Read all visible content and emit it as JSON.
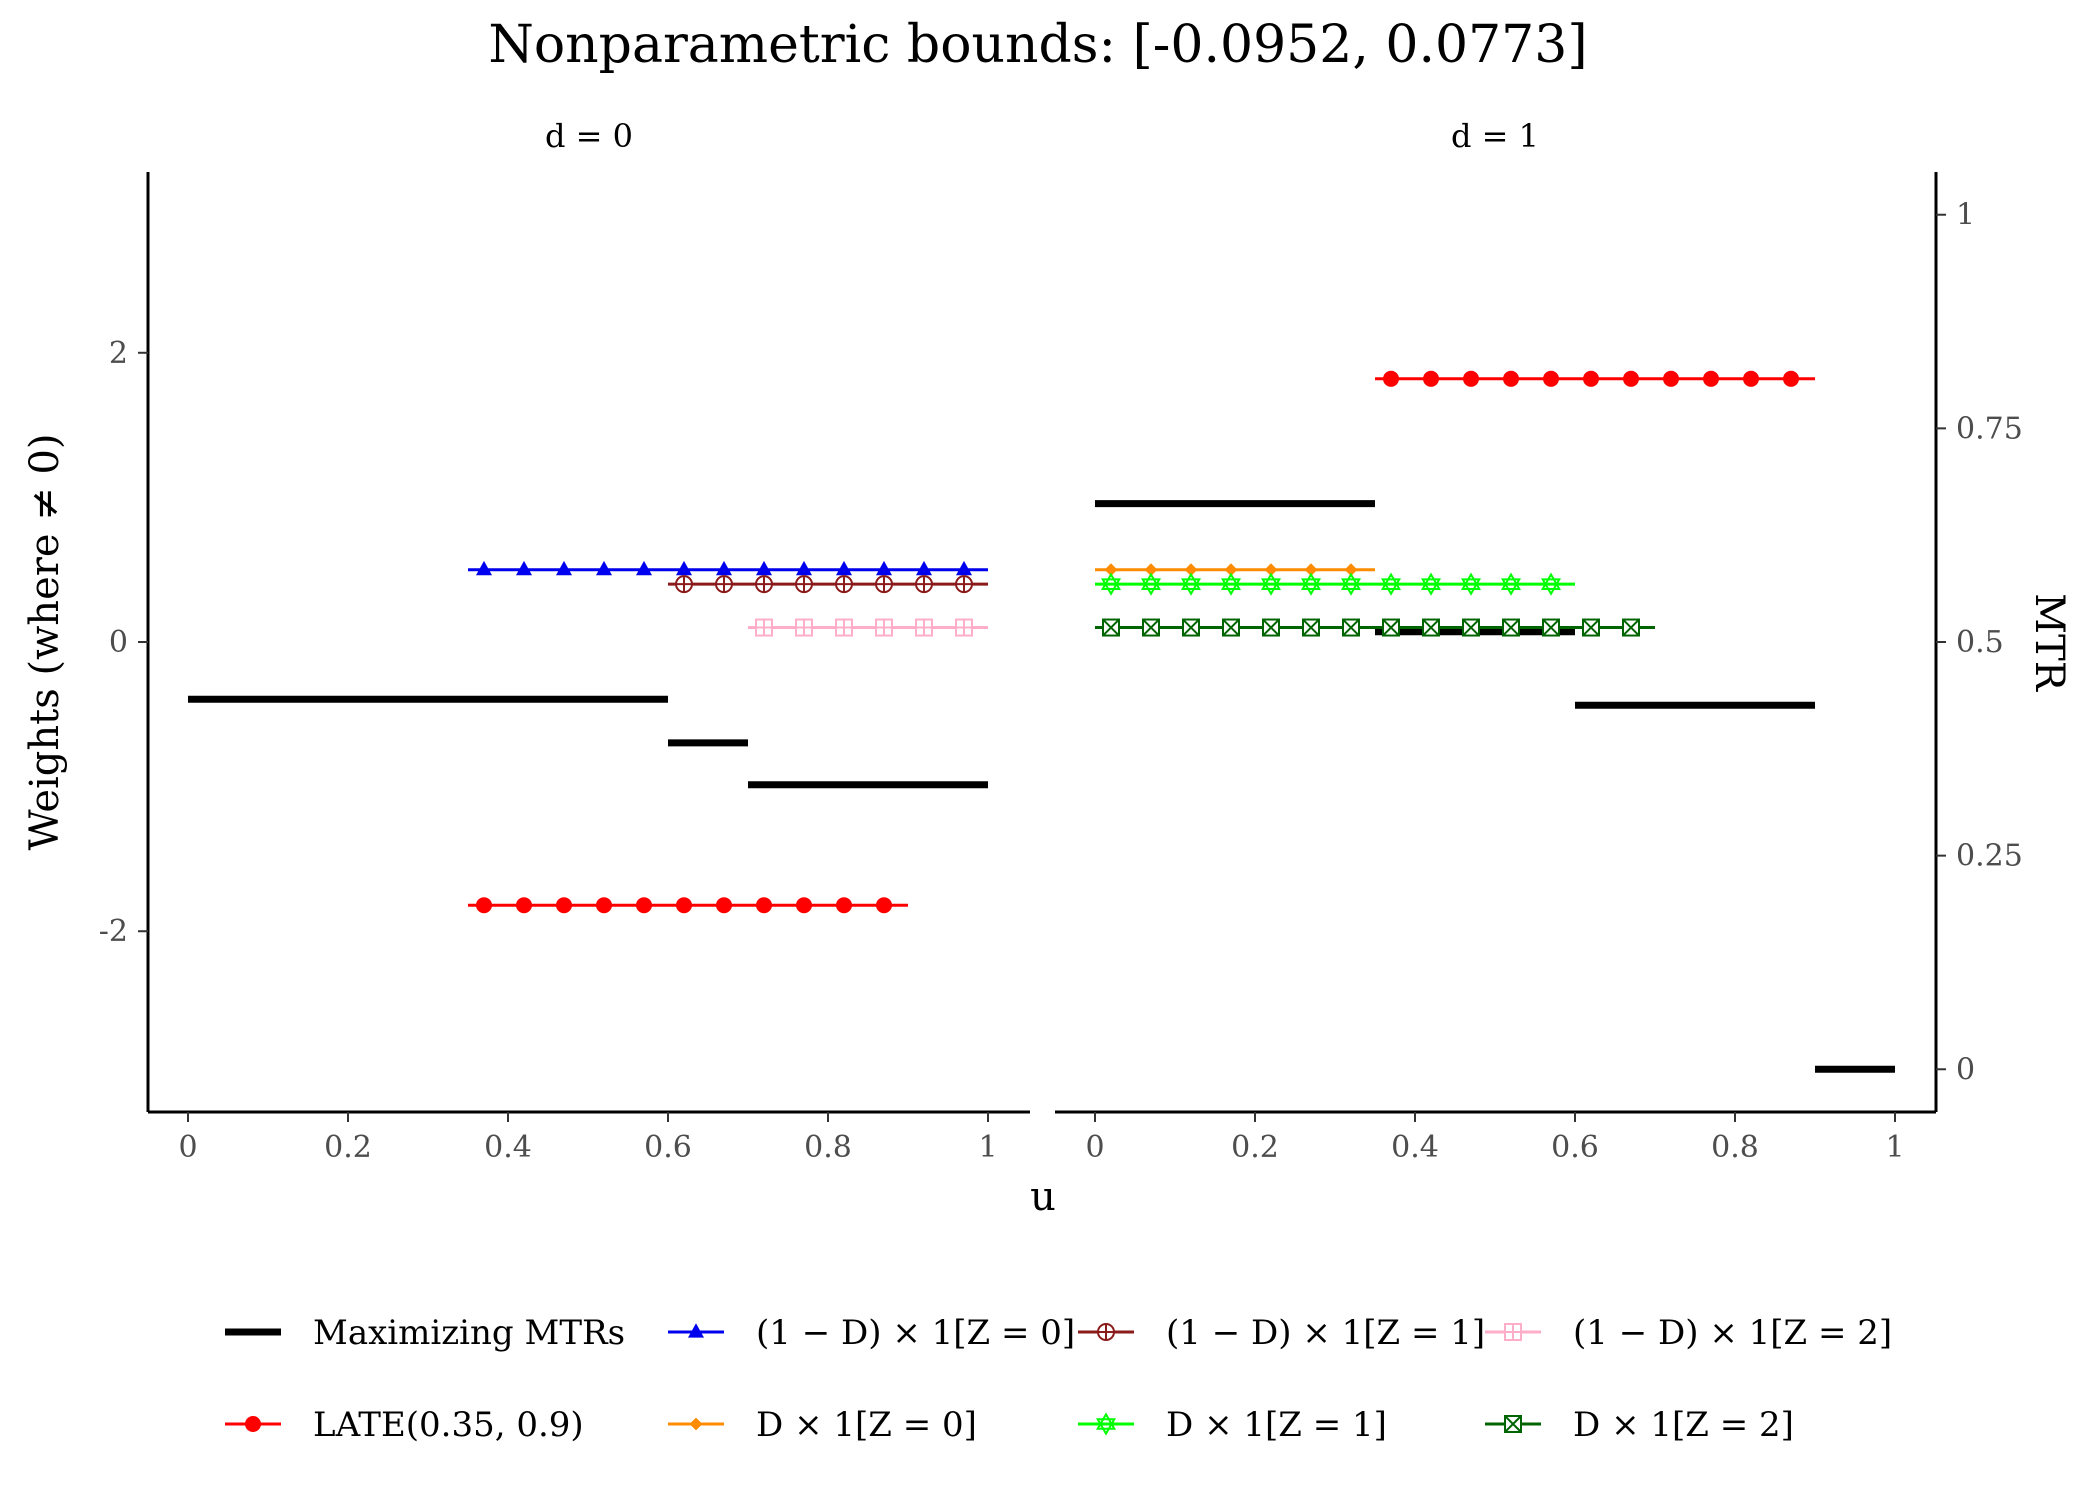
{
  "chart_data": {
    "type": "line",
    "title": "Nonparametric bounds: [-0.0952, 0.0773]",
    "xlabel": "u",
    "ylabel_left": "Weights (where ≠ 0)",
    "ylabel_right": "MTR",
    "panels": [
      {
        "label": "d = 0",
        "xlim": [
          0,
          1
        ]
      },
      {
        "label": "d = 1",
        "xlim": [
          0,
          1
        ]
      }
    ],
    "x_ticks": [
      "0",
      "0.2",
      "0.4",
      "0.6",
      "0.8",
      "1"
    ],
    "y_left": {
      "lim": [
        -3.25,
        3.25
      ],
      "ticks": [
        -2,
        0,
        2
      ],
      "tick_labels": [
        "-2",
        "0",
        "2"
      ]
    },
    "y_right": {
      "lim": [
        -0.05,
        1.05
      ],
      "ticks": [
        0,
        0.25,
        0.5,
        0.75,
        1
      ],
      "tick_labels": [
        "0",
        "0.25",
        "0.5",
        "0.75",
        "1"
      ]
    },
    "series": [
      {
        "name": "Maximizing MTRs",
        "color": "#000000",
        "marker": "none",
        "axis": "right",
        "segments": [
          {
            "panel": 0,
            "x": [
              0,
              0.35
            ],
            "y": 0.433
          },
          {
            "panel": 0,
            "x": [
              0.35,
              0.6
            ],
            "y": 0.433
          },
          {
            "panel": 0,
            "x": [
              0.6,
              0.7
            ],
            "y": 0.382
          },
          {
            "panel": 0,
            "x": [
              0.7,
              0.9
            ],
            "y": 0.333
          },
          {
            "panel": 0,
            "x": [
              0.9,
              1.0
            ],
            "y": 0.333
          },
          {
            "panel": 1,
            "x": [
              0,
              0.35
            ],
            "y": 0.662
          },
          {
            "panel": 1,
            "x": [
              0.35,
              0.6
            ],
            "y": 0.512
          },
          {
            "panel": 1,
            "x": [
              0.6,
              0.9
            ],
            "y": 0.426
          },
          {
            "panel": 1,
            "x": [
              0.9,
              1.0
            ],
            "y": 0.0
          }
        ]
      },
      {
        "name": "(1 − D) × 1[Z = 0]",
        "color": "#0000ee",
        "marker": "triangle",
        "axis": "left",
        "segments": [
          {
            "panel": 0,
            "x": [
              0.35,
              1.0
            ],
            "y": 0.5
          }
        ]
      },
      {
        "name": "(1 − D) × 1[Z = 1]",
        "color": "#8b1a1a",
        "marker": "circle-plus",
        "axis": "left",
        "segments": [
          {
            "panel": 0,
            "x": [
              0.6,
              1.0
            ],
            "y": 0.4
          }
        ]
      },
      {
        "name": "(1 − D) × 1[Z = 2]",
        "color": "#ffaec9",
        "marker": "square-plus",
        "axis": "left",
        "segments": [
          {
            "panel": 0,
            "x": [
              0.7,
              1.0
            ],
            "y": 0.1
          }
        ]
      },
      {
        "name": "LATE(0.35, 0.9)",
        "color": "#ff0000",
        "marker": "dot",
        "axis": "left",
        "segments": [
          {
            "panel": 0,
            "x": [
              0.35,
              0.9
            ],
            "y": -1.82
          },
          {
            "panel": 1,
            "x": [
              0.35,
              0.9
            ],
            "y": 1.82
          }
        ]
      },
      {
        "name": "D × 1[Z = 0]",
        "color": "#ff8c00",
        "marker": "diamond",
        "axis": "left",
        "segments": [
          {
            "panel": 1,
            "x": [
              0,
              0.35
            ],
            "y": 0.5
          }
        ]
      },
      {
        "name": "D × 1[Z = 1]",
        "color": "#00ff00",
        "marker": "star",
        "axis": "left",
        "segments": [
          {
            "panel": 1,
            "x": [
              0,
              0.6
            ],
            "y": 0.4
          }
        ]
      },
      {
        "name": "D × 1[Z = 2]",
        "color": "#006400",
        "marker": "square-x",
        "axis": "left",
        "segments": [
          {
            "panel": 1,
            "x": [
              0,
              0.7
            ],
            "y": 0.1
          }
        ]
      }
    ],
    "legend": {
      "position": "bottom",
      "rows": [
        [
          "Maximizing MTRs",
          "(1 − D) × 1[Z = 0]",
          "(1 − D) × 1[Z = 1]",
          "(1 − D) × 1[Z = 2]"
        ],
        [
          "LATE(0.35, 0.9)",
          "D × 1[Z = 0]",
          "D × 1[Z = 1]",
          "D × 1[Z = 2]"
        ]
      ]
    },
    "grid": false
  }
}
